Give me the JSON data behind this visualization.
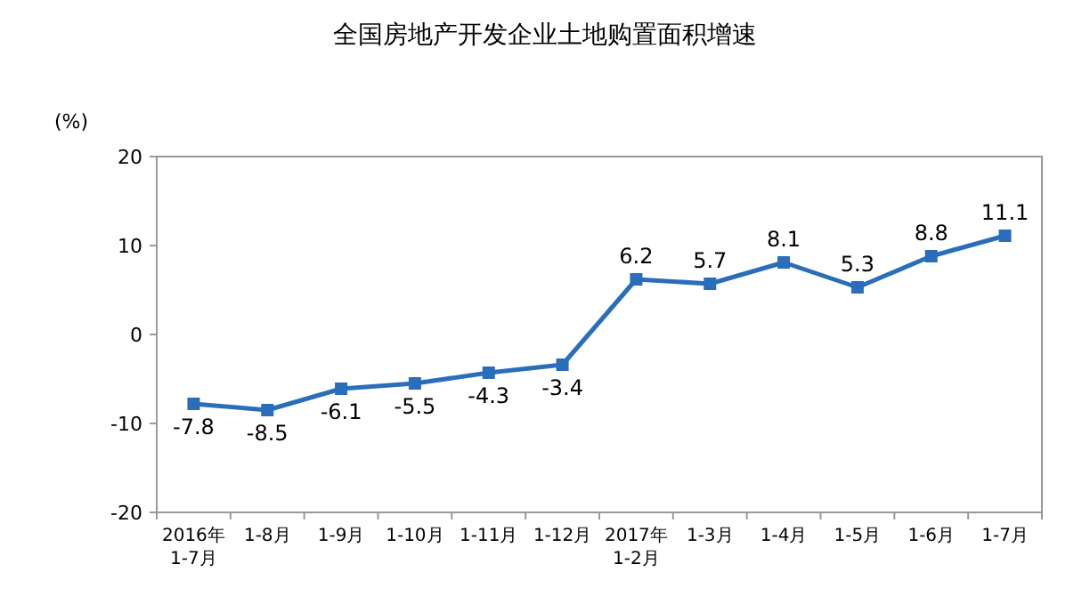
{
  "chart_data": {
    "type": "line",
    "title": "全国房地产开发企业土地购置面积增速",
    "ylabel": "(%)",
    "categories": [
      "2016年\n1-7月",
      "1-8月",
      "1-9月",
      "1-10月",
      "1-11月",
      "1-12月",
      "2017年\n1-2月",
      "1-3月",
      "1-4月",
      "1-5月",
      "1-6月",
      "1-7月"
    ],
    "series": [
      {
        "color": "#2a6ebb",
        "values": [
          -7.8,
          -8.5,
          -6.1,
          -5.5,
          -4.3,
          -3.4,
          6.2,
          5.7,
          8.1,
          5.3,
          8.8,
          11.1
        ]
      }
    ],
    "ylim": [
      -20,
      20
    ],
    "yticks": [
      -20,
      -10,
      0,
      10,
      20
    ],
    "grid": false,
    "marker": "square",
    "data_labels": true
  }
}
